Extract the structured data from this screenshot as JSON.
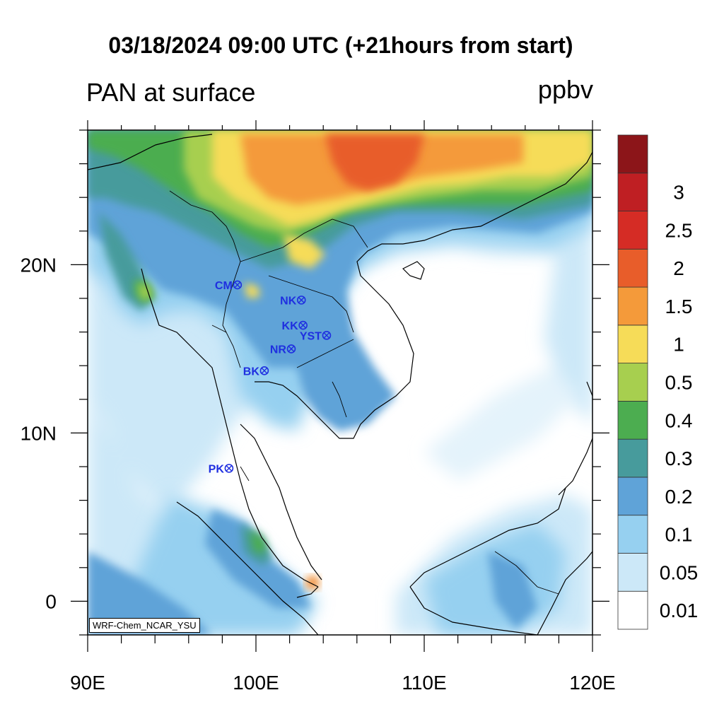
{
  "title": "03/18/2024 09:00 UTC (+21hours from start)",
  "subtitle": "PAN at surface",
  "units": "ppbv",
  "credit": "WRF-Chem_NCAR_YSU",
  "colors": {
    "ocean": "#ffffff",
    "coast": "#000000",
    "station": "#1f2fe0"
  },
  "chart_data": {
    "type": "heatmap",
    "title": "PAN at surface",
    "xlabel": "",
    "ylabel": "",
    "xlim": [
      90,
      120
    ],
    "ylim": [
      -2,
      28
    ],
    "x_ticks": [
      {
        "value": 90,
        "label": "90E"
      },
      {
        "value": 100,
        "label": "100E"
      },
      {
        "value": 110,
        "label": "110E"
      },
      {
        "value": 120,
        "label": "120E"
      }
    ],
    "y_ticks": [
      {
        "value": 0,
        "label": "0"
      },
      {
        "value": 10,
        "label": "10N"
      },
      {
        "value": 20,
        "label": "20N"
      }
    ],
    "colorbar": {
      "levels": [
        "0.01",
        "0.05",
        "0.1",
        "0.2",
        "0.3",
        "0.4",
        "0.5",
        "1",
        "1.5",
        "2",
        "2.5",
        "3"
      ],
      "colors": [
        "#ffffff",
        "#cce8f8",
        "#96d0f0",
        "#5fa3d8",
        "#479b9c",
        "#4cad50",
        "#a7cf4f",
        "#f6dc58",
        "#f49a3a",
        "#e85d2a",
        "#d52c25",
        "#bf1f23",
        "#8c1519"
      ]
    },
    "stations": [
      {
        "name": "CM",
        "lon": 98.9,
        "lat": 18.8
      },
      {
        "name": "NK",
        "lon": 102.7,
        "lat": 17.9
      },
      {
        "name": "KK",
        "lon": 102.8,
        "lat": 16.4
      },
      {
        "name": "YST",
        "lon": 104.2,
        "lat": 15.8
      },
      {
        "name": "NR",
        "lon": 102.1,
        "lat": 15.0
      },
      {
        "name": "BK",
        "lon": 100.5,
        "lat": 13.7
      },
      {
        "name": "PK",
        "lon": 98.4,
        "lat": 7.9
      }
    ]
  }
}
